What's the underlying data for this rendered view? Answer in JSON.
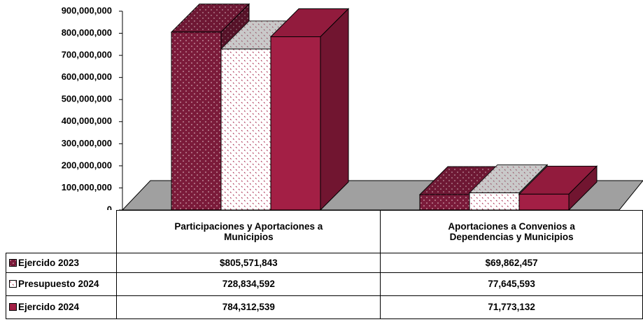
{
  "chart_data": {
    "type": "bar3d",
    "categories": [
      "Participaciones y Aportaciones a Municipios",
      "Aportaciones a Convenios a Dependencias y Municipios"
    ],
    "series": [
      {
        "name": "Ejercido 2023",
        "color": "#7b1b3a",
        "values": [
          805571843,
          69862457
        ],
        "value_labels": [
          "$805,571,843",
          "$69,862,457"
        ]
      },
      {
        "name": "Presupuesto 2024",
        "color": "#ffffff",
        "values": [
          728834592,
          77645593
        ],
        "value_labels": [
          "728,834,592",
          "77,645,593"
        ]
      },
      {
        "name": "Ejercido 2024",
        "color": "#a31f45",
        "values": [
          784312539,
          71773132
        ],
        "value_labels": [
          "784,312,539",
          "71,773,132"
        ]
      }
    ],
    "ylim": [
      0,
      900000000
    ],
    "yticks": [
      0,
      {
        "value": 100000000,
        "label": "100,000,000"
      },
      {
        "value": 200000000,
        "label": "200,000,000"
      },
      {
        "value": 300000000,
        "label": "300,000,000"
      },
      {
        "value": 400000000,
        "label": "400,000,000"
      },
      {
        "value": 500000000,
        "label": "500,000,000"
      },
      {
        "value": 600000000,
        "label": "600,000,000"
      },
      {
        "value": 700000000,
        "label": "700,000,000"
      },
      {
        "value": 800000000,
        "label": "800,000,000"
      },
      {
        "value": 900000000,
        "label": "900,000,000"
      }
    ]
  }
}
